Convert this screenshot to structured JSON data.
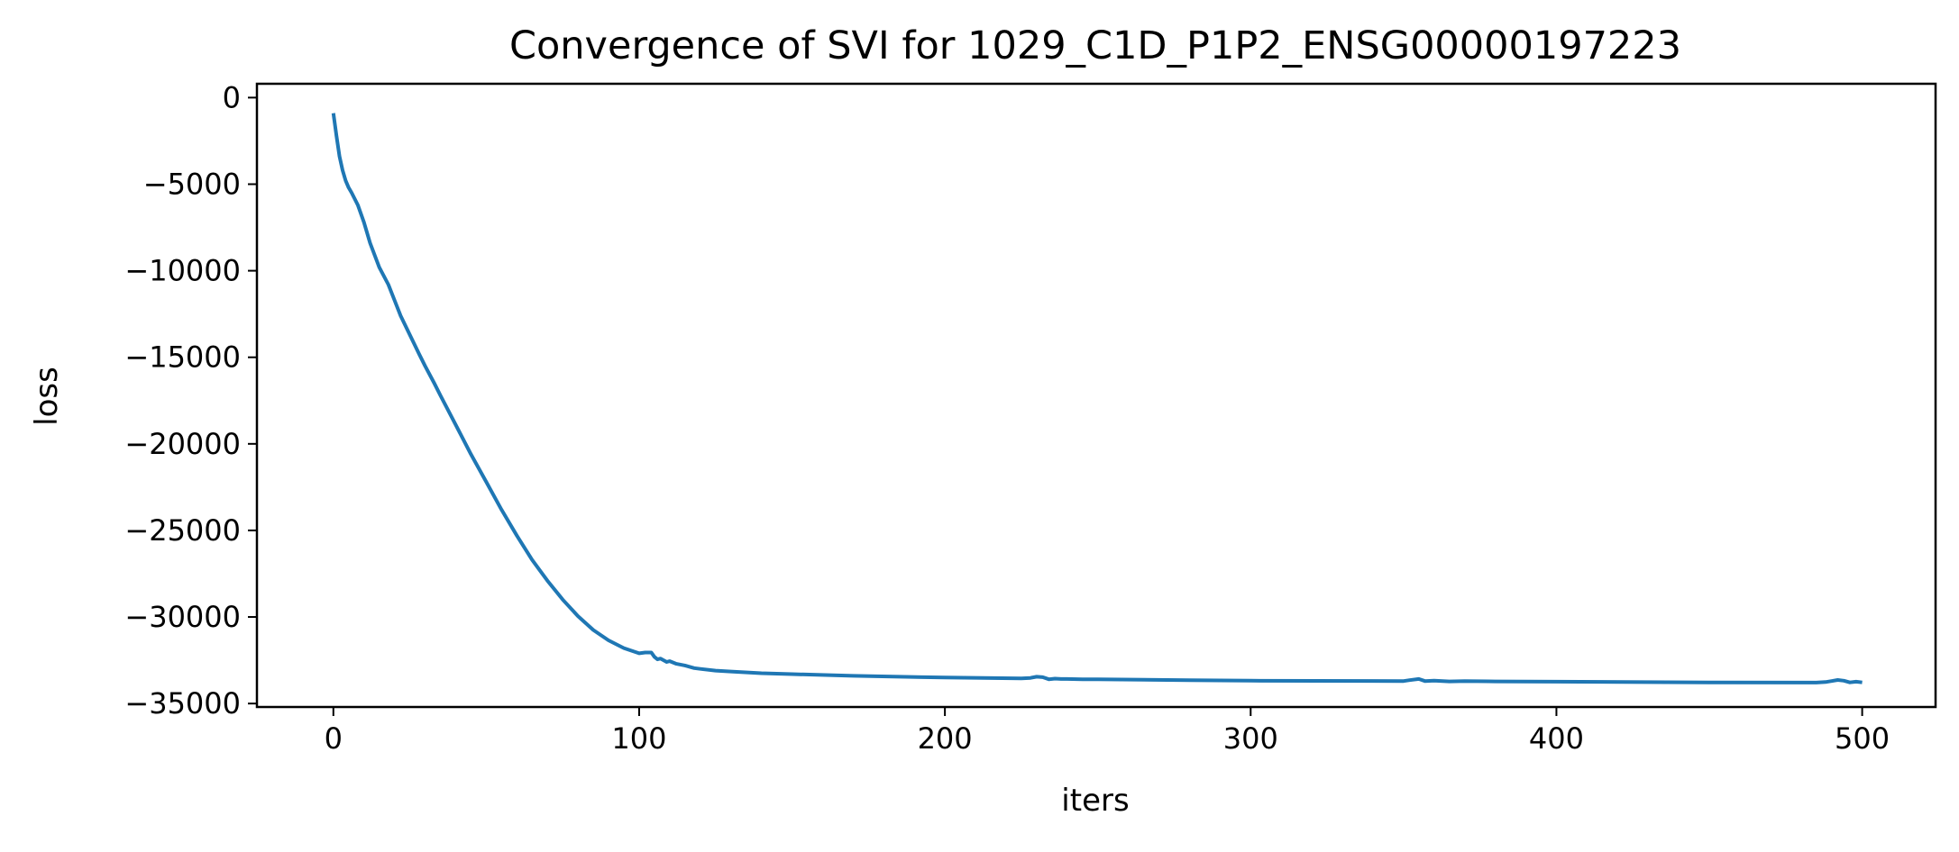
{
  "chart_data": {
    "type": "line",
    "title": "Convergence of SVI for 1029_C1D_P1P2_ENSG00000197223",
    "xlabel": "iters",
    "ylabel": "loss",
    "xlim": [
      -25,
      524
    ],
    "ylim": [
      -35200,
      800
    ],
    "x_ticks": [
      0,
      100,
      200,
      300,
      400,
      500
    ],
    "y_ticks": [
      0,
      -5000,
      -10000,
      -15000,
      -20000,
      -25000,
      -30000,
      -35000
    ],
    "x_tick_labels": [
      "0",
      "100",
      "200",
      "300",
      "400",
      "500"
    ],
    "y_tick_labels": [
      "0",
      "−5000",
      "−10000",
      "−15000",
      "−20000",
      "−25000",
      "−30000",
      "−35000"
    ],
    "grid": false,
    "series": [
      {
        "color": "#1f77b4",
        "x": [
          0,
          1,
          2,
          3,
          4,
          5,
          6,
          8,
          10,
          12,
          15,
          18,
          20,
          22,
          25,
          28,
          30,
          33,
          35,
          40,
          45,
          50,
          55,
          60,
          65,
          70,
          75,
          80,
          85,
          90,
          95,
          100,
          102,
          104,
          105,
          106,
          107,
          108,
          109,
          110,
          112,
          115,
          118,
          120,
          125,
          130,
          140,
          150,
          170,
          200,
          225,
          228,
          230,
          232,
          234,
          236,
          238,
          240,
          245,
          250,
          280,
          300,
          350,
          352,
          355,
          357,
          360,
          365,
          370,
          380,
          400,
          450,
          485,
          488,
          490,
          492,
          494,
          496,
          498,
          500
        ],
        "y": [
          -900,
          -2200,
          -3400,
          -4200,
          -4800,
          -5200,
          -5500,
          -6200,
          -7200,
          -8400,
          -9800,
          -10800,
          -11700,
          -12600,
          -13700,
          -14800,
          -15500,
          -16500,
          -17200,
          -18900,
          -20600,
          -22200,
          -23800,
          -25300,
          -26700,
          -27900,
          -29000,
          -29950,
          -30750,
          -31350,
          -31800,
          -32100,
          -32050,
          -32050,
          -32300,
          -32450,
          -32400,
          -32500,
          -32600,
          -32550,
          -32700,
          -32800,
          -32950,
          -33000,
          -33100,
          -33150,
          -33250,
          -33300,
          -33400,
          -33500,
          -33550,
          -33520,
          -33450,
          -33480,
          -33600,
          -33560,
          -33580,
          -33580,
          -33600,
          -33600,
          -33650,
          -33680,
          -33700,
          -33650,
          -33580,
          -33700,
          -33680,
          -33720,
          -33700,
          -33720,
          -33740,
          -33780,
          -33790,
          -33760,
          -33700,
          -33640,
          -33680,
          -33780,
          -33740,
          -33780
        ]
      }
    ]
  }
}
